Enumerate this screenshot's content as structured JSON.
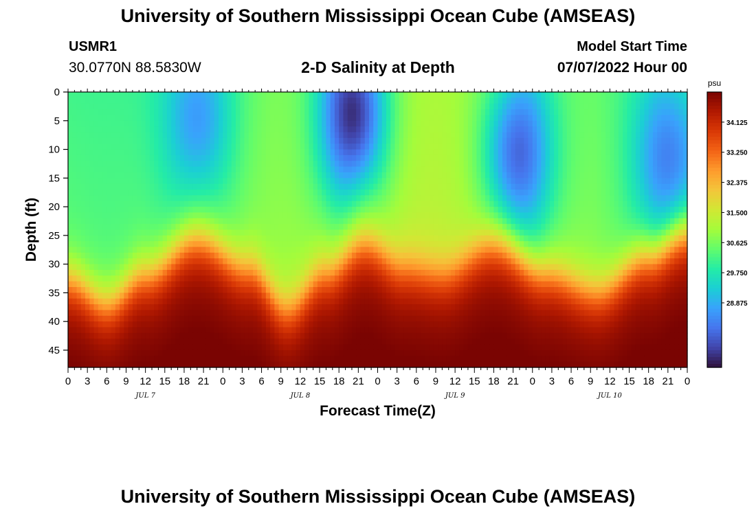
{
  "header": {
    "title": "University of Southern Mississippi Ocean Cube (AMSEAS)",
    "station_id": "USMR1",
    "coordinates": "30.0770N  88.5830W",
    "chart_title": "2-D Salinity at Depth",
    "model_start_label": "Model Start Time",
    "model_start_value": "07/07/2022 Hour 00"
  },
  "footer": {
    "title": "University of Southern Mississippi Ocean Cube (AMSEAS)"
  },
  "chart_data": {
    "type": "heatmap",
    "title": "2-D Salinity at Depth",
    "xlabel": "Forecast Time(Z)",
    "ylabel": "Depth (ft)",
    "x_tick_labels": [
      "0",
      "3",
      "6",
      "9",
      "12",
      "15",
      "18",
      "21",
      "0",
      "3",
      "6",
      "9",
      "12",
      "15",
      "18",
      "21",
      "0",
      "3",
      "6",
      "9",
      "12",
      "15",
      "18",
      "21",
      "0",
      "3",
      "6",
      "9",
      "12",
      "15",
      "18",
      "21",
      "0"
    ],
    "x_range_hours": [
      0,
      96
    ],
    "day_labels": [
      {
        "label": "JUL 7",
        "hour": 12
      },
      {
        "label": "JUL 8",
        "hour": 36
      },
      {
        "label": "JUL 9",
        "hour": 60
      },
      {
        "label": "JUL 10",
        "hour": 84
      }
    ],
    "y_tick_labels": [
      "0",
      "5",
      "10",
      "15",
      "20",
      "25",
      "30",
      "35",
      "40",
      "45"
    ],
    "y_range_ft": [
      0,
      48
    ],
    "colorbar": {
      "unit": "psu",
      "range": [
        27.0,
        35.0
      ],
      "tick_labels": [
        "34.125",
        "33.250",
        "32.375",
        "31.500",
        "30.625",
        "29.750",
        "28.875"
      ],
      "colors": [
        "#30123b",
        "#4145ab",
        "#4675ed",
        "#39a2fc",
        "#1bcfd4",
        "#24eca6",
        "#61fc6c",
        "#a4fc3b",
        "#d1e834",
        "#f3c63a",
        "#fe9b2d",
        "#f36315",
        "#d93806",
        "#b11901",
        "#7a0402"
      ]
    },
    "surface_minima": [
      {
        "hour": 20,
        "depth_ft": 5,
        "salinity": 28.6
      },
      {
        "hour": 44,
        "depth_ft": 4,
        "salinity": 27.3
      },
      {
        "hour": 70,
        "depth_ft": 11,
        "salinity": 27.9
      },
      {
        "hour": 93,
        "depth_ft": 12,
        "salinity": 28.2
      }
    ],
    "halocline_depth_ft": [
      {
        "hour": 0,
        "depth": 33
      },
      {
        "hour": 6,
        "depth": 37
      },
      {
        "hour": 12,
        "depth": 32
      },
      {
        "hour": 20,
        "depth": 26
      },
      {
        "hour": 28,
        "depth": 31
      },
      {
        "hour": 34,
        "depth": 38
      },
      {
        "hour": 40,
        "depth": 32
      },
      {
        "hour": 46,
        "depth": 27
      },
      {
        "hour": 52,
        "depth": 31
      },
      {
        "hour": 58,
        "depth": 32
      },
      {
        "hour": 66,
        "depth": 27
      },
      {
        "hour": 74,
        "depth": 32
      },
      {
        "hour": 82,
        "depth": 35
      },
      {
        "hour": 90,
        "depth": 29
      },
      {
        "hour": 96,
        "depth": 25
      }
    ],
    "bottom_salinity_psu": 34.6
  }
}
